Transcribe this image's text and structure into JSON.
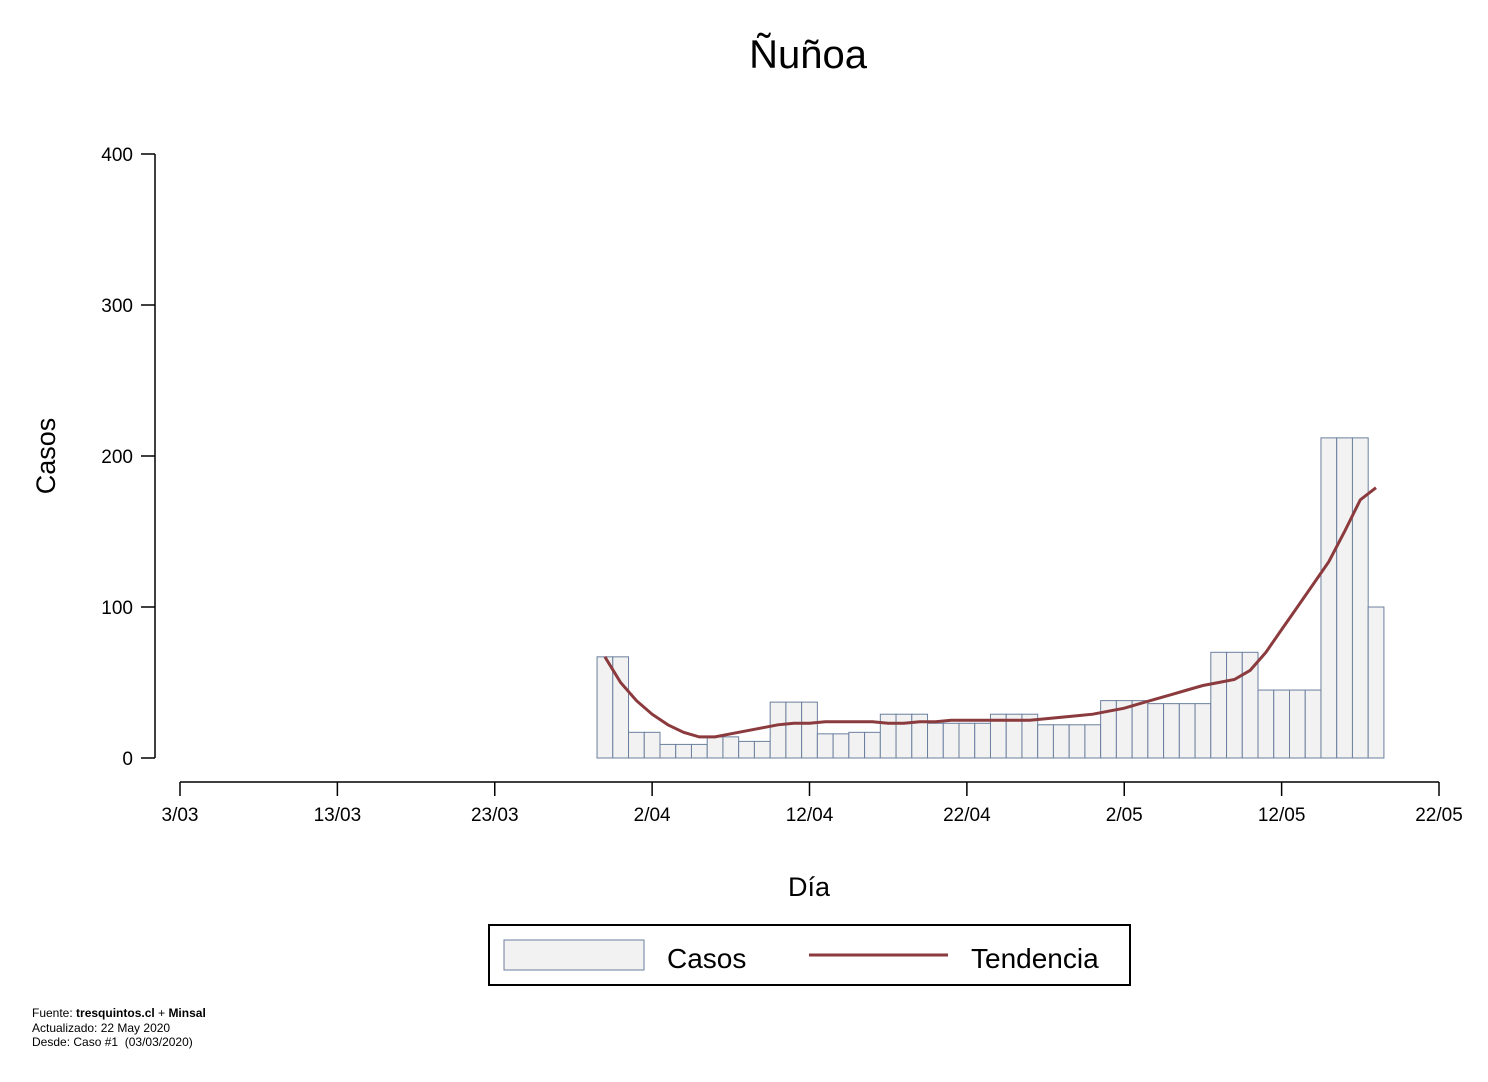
{
  "chart_data": {
    "type": "bar",
    "title": "Ñuñoa",
    "xlabel": "Día",
    "ylabel": "Casos",
    "ylim": [
      0,
      400
    ],
    "yticks": [
      0,
      100,
      200,
      300,
      400
    ],
    "xticks": [
      "3/03",
      "13/03",
      "23/03",
      "2/04",
      "12/04",
      "22/04",
      "2/05",
      "12/05",
      "22/05"
    ],
    "xlim_days": [
      0,
      80
    ],
    "bars": [
      {
        "day": 27,
        "value": 67
      },
      {
        "day": 28,
        "value": 67
      },
      {
        "day": 29,
        "value": 17
      },
      {
        "day": 30,
        "value": 17
      },
      {
        "day": 31,
        "value": 9
      },
      {
        "day": 32,
        "value": 9
      },
      {
        "day": 33,
        "value": 9
      },
      {
        "day": 34,
        "value": 14
      },
      {
        "day": 35,
        "value": 14
      },
      {
        "day": 36,
        "value": 11
      },
      {
        "day": 37,
        "value": 11
      },
      {
        "day": 38,
        "value": 37
      },
      {
        "day": 39,
        "value": 37
      },
      {
        "day": 40,
        "value": 37
      },
      {
        "day": 41,
        "value": 16
      },
      {
        "day": 42,
        "value": 16
      },
      {
        "day": 43,
        "value": 17
      },
      {
        "day": 44,
        "value": 17
      },
      {
        "day": 45,
        "value": 29
      },
      {
        "day": 46,
        "value": 29
      },
      {
        "day": 47,
        "value": 29
      },
      {
        "day": 48,
        "value": 23
      },
      {
        "day": 49,
        "value": 23
      },
      {
        "day": 50,
        "value": 23
      },
      {
        "day": 51,
        "value": 23
      },
      {
        "day": 52,
        "value": 29
      },
      {
        "day": 53,
        "value": 29
      },
      {
        "day": 54,
        "value": 29
      },
      {
        "day": 55,
        "value": 22
      },
      {
        "day": 56,
        "value": 22
      },
      {
        "day": 57,
        "value": 22
      },
      {
        "day": 58,
        "value": 22
      },
      {
        "day": 59,
        "value": 38
      },
      {
        "day": 60,
        "value": 38
      },
      {
        "day": 61,
        "value": 38
      },
      {
        "day": 62,
        "value": 36
      },
      {
        "day": 63,
        "value": 36
      },
      {
        "day": 64,
        "value": 36
      },
      {
        "day": 65,
        "value": 36
      },
      {
        "day": 66,
        "value": 70
      },
      {
        "day": 67,
        "value": 70
      },
      {
        "day": 68,
        "value": 70
      },
      {
        "day": 69,
        "value": 45
      },
      {
        "day": 70,
        "value": 45
      },
      {
        "day": 71,
        "value": 45
      },
      {
        "day": 72,
        "value": 45
      },
      {
        "day": 73,
        "value": 212
      },
      {
        "day": 74,
        "value": 212
      },
      {
        "day": 75,
        "value": 212
      },
      {
        "day": 76,
        "value": 100
      }
    ],
    "trend": [
      {
        "day": 27,
        "value": 67
      },
      {
        "day": 28,
        "value": 50
      },
      {
        "day": 29,
        "value": 38
      },
      {
        "day": 30,
        "value": 29
      },
      {
        "day": 31,
        "value": 22
      },
      {
        "day": 32,
        "value": 17
      },
      {
        "day": 33,
        "value": 14
      },
      {
        "day": 34,
        "value": 14
      },
      {
        "day": 35,
        "value": 16
      },
      {
        "day": 36,
        "value": 18
      },
      {
        "day": 37,
        "value": 20
      },
      {
        "day": 38,
        "value": 22
      },
      {
        "day": 39,
        "value": 23
      },
      {
        "day": 40,
        "value": 23
      },
      {
        "day": 41,
        "value": 24
      },
      {
        "day": 42,
        "value": 24
      },
      {
        "day": 43,
        "value": 24
      },
      {
        "day": 44,
        "value": 24
      },
      {
        "day": 45,
        "value": 23
      },
      {
        "day": 46,
        "value": 23
      },
      {
        "day": 47,
        "value": 24
      },
      {
        "day": 48,
        "value": 24
      },
      {
        "day": 49,
        "value": 25
      },
      {
        "day": 50,
        "value": 25
      },
      {
        "day": 51,
        "value": 25
      },
      {
        "day": 52,
        "value": 25
      },
      {
        "day": 53,
        "value": 25
      },
      {
        "day": 54,
        "value": 25
      },
      {
        "day": 55,
        "value": 26
      },
      {
        "day": 56,
        "value": 27
      },
      {
        "day": 57,
        "value": 28
      },
      {
        "day": 58,
        "value": 29
      },
      {
        "day": 59,
        "value": 31
      },
      {
        "day": 60,
        "value": 33
      },
      {
        "day": 61,
        "value": 36
      },
      {
        "day": 62,
        "value": 39
      },
      {
        "day": 63,
        "value": 42
      },
      {
        "day": 64,
        "value": 45
      },
      {
        "day": 65,
        "value": 48
      },
      {
        "day": 66,
        "value": 50
      },
      {
        "day": 67,
        "value": 52
      },
      {
        "day": 68,
        "value": 58
      },
      {
        "day": 69,
        "value": 70
      },
      {
        "day": 70,
        "value": 85
      },
      {
        "day": 71,
        "value": 100
      },
      {
        "day": 72,
        "value": 115
      },
      {
        "day": 73,
        "value": 130
      },
      {
        "day": 74,
        "value": 150
      },
      {
        "day": 75,
        "value": 171
      },
      {
        "day": 76,
        "value": 179
      }
    ],
    "legend": {
      "placement": "bottom-center",
      "entries": [
        "Casos",
        "Tendencia"
      ]
    },
    "grid": false
  },
  "colors": {
    "bar_fill": "#f2f2f2",
    "bar_stroke": "#6b7f9e",
    "trend_line": "#8b3a3d",
    "axis": "#000000"
  },
  "footer": {
    "source_label": "Fuente:",
    "source_site": "tresquintos.cl",
    "source_plus": "+",
    "source_minsal": "Minsal",
    "updated": "Actualizado: 22 May 2020",
    "since": "Desde: Caso #1  (03/03/2020)"
  }
}
